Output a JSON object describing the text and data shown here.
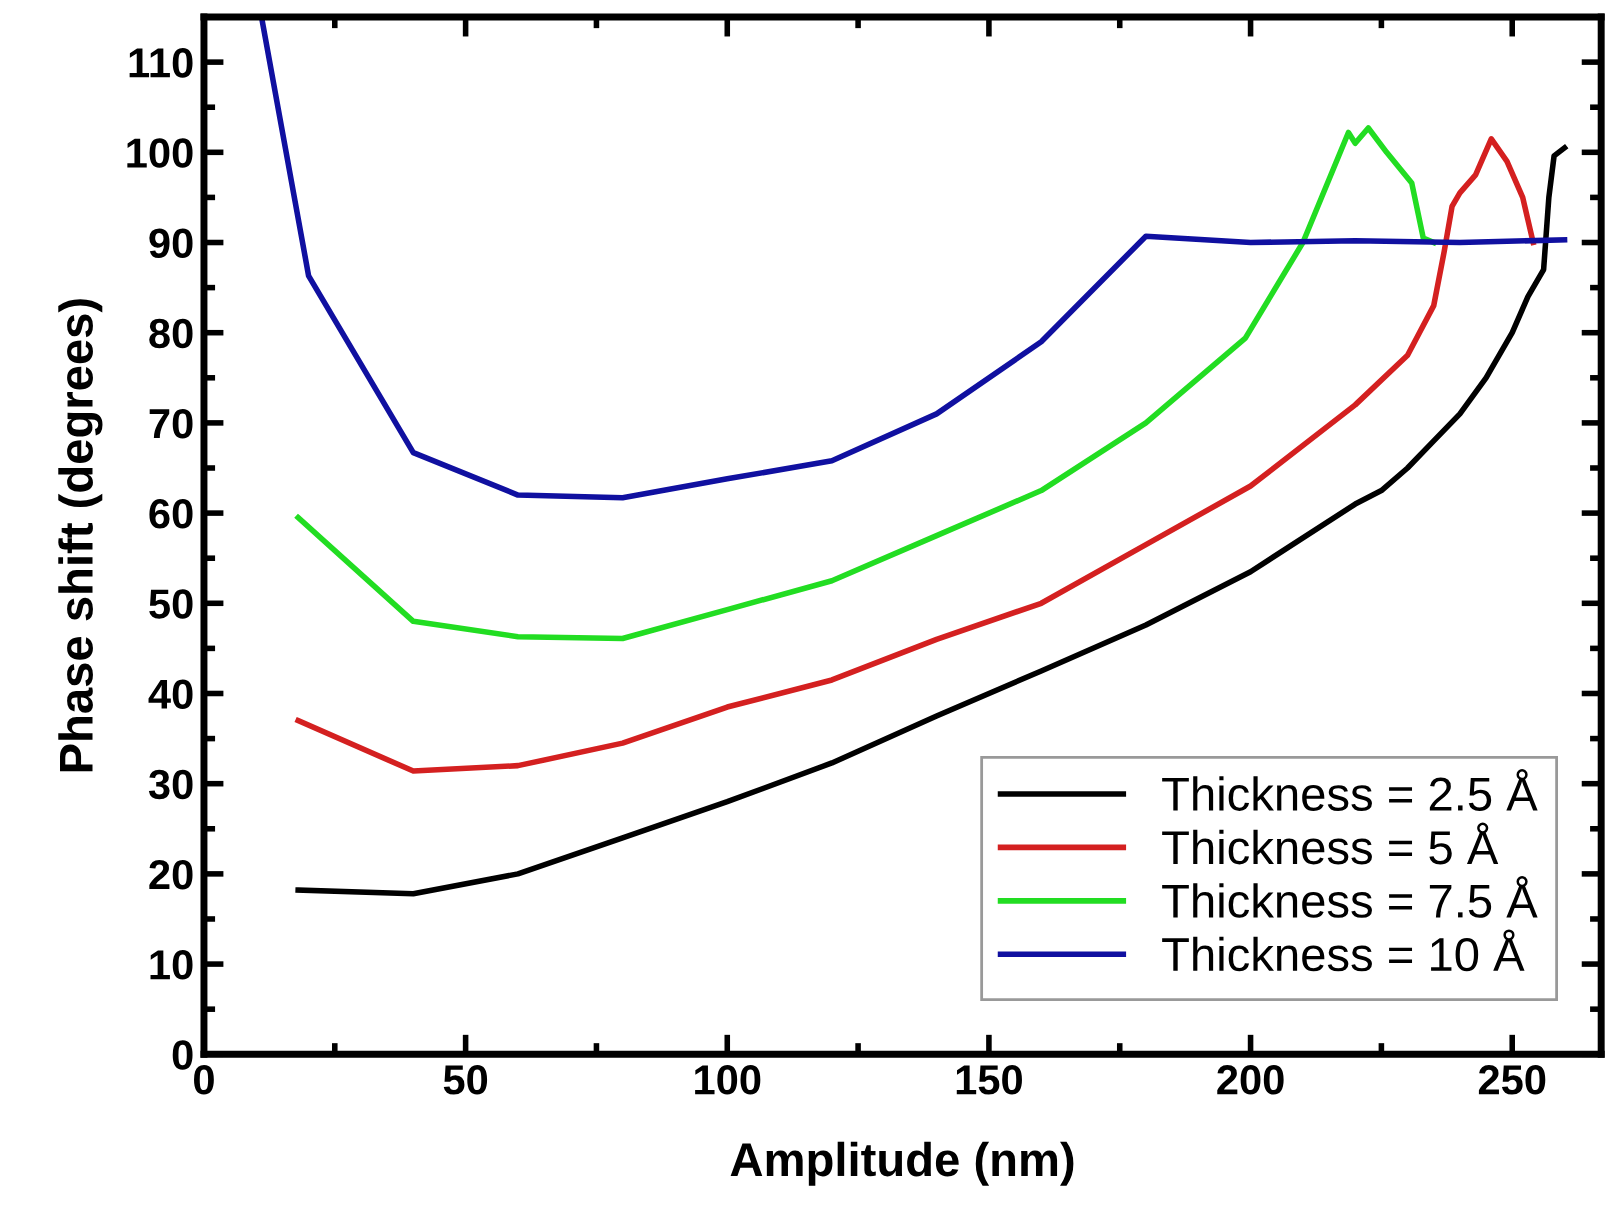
{
  "chart_data": {
    "type": "line",
    "xlabel": "Amplitude (nm)",
    "ylabel": "Phase shift (degrees)",
    "xlim": [
      0,
      267
    ],
    "ylim": [
      0,
      115
    ],
    "xticks": [
      0,
      50,
      100,
      150,
      200,
      250
    ],
    "yticks": [
      0,
      10,
      20,
      30,
      40,
      50,
      60,
      70,
      80,
      90,
      100,
      110
    ],
    "grid": false,
    "legend": "bottom right",
    "marker": "none",
    "line_style": "solid",
    "series": [
      {
        "name": "Thickness = 2.5 Å",
        "color": "#000000",
        "x": [
          18,
          40,
          60,
          80,
          100,
          120,
          140,
          160,
          180,
          200,
          220,
          225,
          230,
          235,
          240,
          245,
          250,
          253,
          256,
          257,
          258,
          260
        ],
        "values": [
          18.2,
          17.8,
          20,
          24,
          28,
          32.3,
          37.5,
          42.5,
          47.6,
          53.5,
          61,
          62.5,
          65,
          68,
          71,
          75,
          80,
          84,
          87,
          95,
          99.6,
          100.5
        ]
      },
      {
        "name": "Thickness = 5 Å",
        "color": "#d42020",
        "x": [
          18,
          40,
          60,
          80,
          100,
          120,
          140,
          160,
          180,
          200,
          220,
          230,
          235,
          237,
          238.5,
          240,
          243,
          246,
          249,
          252,
          254
        ],
        "values": [
          37,
          31.4,
          32,
          34.5,
          38.5,
          41.5,
          46,
          50,
          56.5,
          63,
          72,
          77.5,
          83,
          89,
          94,
          95.5,
          97.5,
          101.5,
          99,
          95,
          90
        ]
      },
      {
        "name": "Thickness = 7.5 Å",
        "color": "#22dd22",
        "x": [
          18,
          40,
          60,
          80,
          100,
          120,
          140,
          160,
          180,
          199,
          210,
          218.7,
          220,
          222.5,
          226,
          230.8,
          233,
          235
        ],
        "values": [
          59.5,
          48,
          46.3,
          46.1,
          49.3,
          52.5,
          57.5,
          62.5,
          70,
          79.4,
          90,
          102.2,
          101,
          102.7,
          100,
          96.6,
          90.5,
          90
        ]
      },
      {
        "name": "Thickness = 10 Å",
        "color": "#1010a0",
        "x": [
          11,
          20,
          40,
          60,
          80,
          100,
          120,
          140,
          160,
          180,
          200,
          220,
          240,
          260
        ],
        "values": [
          115,
          86.3,
          66.7,
          62,
          61.7,
          63.8,
          65.8,
          71,
          79,
          90.7,
          90,
          90.2,
          90,
          90.3
        ]
      }
    ]
  }
}
